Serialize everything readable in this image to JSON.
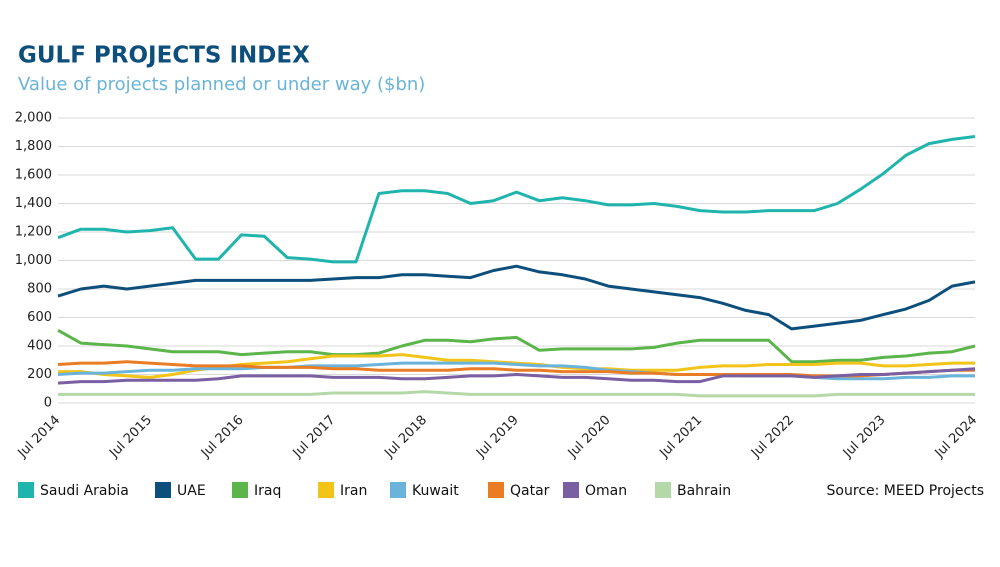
{
  "chart_data": {
    "type": "line",
    "title": "GULF PROJECTS INDEX",
    "subtitle": "Value of projects planned or under way ($bn)",
    "source": "Source: MEED Projects",
    "categories": [
      "Jul 2014",
      null,
      null,
      null,
      "Jul 2015",
      null,
      null,
      null,
      "Jul 2016",
      null,
      null,
      null,
      "Jul 2017",
      null,
      null,
      null,
      "Jul 2018",
      null,
      null,
      null,
      "Jul 2019",
      null,
      null,
      null,
      "Jul 2020",
      null,
      null,
      null,
      "Jul 2021",
      null,
      null,
      null,
      "Jul 2022",
      null,
      null,
      null,
      "Jul 2023",
      null,
      null,
      null,
      "Jul 2024"
    ],
    "ylim": [
      0,
      2000
    ],
    "yticks": [
      0,
      200,
      400,
      600,
      800,
      {
        "value": 1000,
        "label": "1,000"
      },
      {
        "value": 1200,
        "label": "1,200"
      },
      {
        "value": 1400,
        "label": "1,400"
      },
      {
        "value": 1600,
        "label": "1,600"
      },
      {
        "value": 1800,
        "label": "1,800"
      },
      {
        "value": 2000,
        "label": "2,000"
      }
    ],
    "grid": true,
    "legend": "bottom",
    "series": [
      {
        "name": "Saudi Arabia",
        "color": "#1fb5ad",
        "values": [
          1160,
          1220,
          1220,
          1200,
          1210,
          1230,
          1010,
          1010,
          1180,
          1170,
          1020,
          1010,
          990,
          990,
          1470,
          1490,
          1490,
          1470,
          1400,
          1420,
          1480,
          1420,
          1440,
          1420,
          1390,
          1390,
          1400,
          1380,
          1350,
          1340,
          1340,
          1350,
          1350,
          1350,
          1400,
          1500,
          1610,
          1740,
          1820,
          1850,
          1870
        ]
      },
      {
        "name": "UAE",
        "color": "#0d4f7c",
        "values": [
          750,
          800,
          820,
          800,
          820,
          840,
          860,
          860,
          860,
          860,
          860,
          860,
          870,
          880,
          880,
          900,
          900,
          890,
          880,
          930,
          960,
          920,
          900,
          870,
          820,
          800,
          780,
          760,
          740,
          700,
          650,
          620,
          520,
          540,
          560,
          580,
          620,
          660,
          720,
          820,
          850
        ]
      },
      {
        "name": "Iraq",
        "color": "#5cb54a",
        "values": [
          510,
          420,
          410,
          400,
          380,
          360,
          360,
          360,
          340,
          350,
          360,
          360,
          340,
          340,
          350,
          400,
          440,
          440,
          430,
          450,
          460,
          370,
          380,
          380,
          380,
          380,
          390,
          420,
          440,
          440,
          440,
          440,
          290,
          290,
          300,
          300,
          320,
          330,
          350,
          360,
          400
        ]
      },
      {
        "name": "Iran",
        "color": "#f2c418",
        "values": [
          220,
          220,
          200,
          190,
          180,
          200,
          230,
          250,
          270,
          280,
          290,
          310,
          330,
          330,
          330,
          340,
          320,
          300,
          300,
          290,
          280,
          270,
          250,
          240,
          240,
          230,
          230,
          230,
          250,
          260,
          260,
          270,
          270,
          270,
          280,
          280,
          260,
          260,
          270,
          280,
          280
        ]
      },
      {
        "name": "Kuwait",
        "color": "#6ab4db",
        "values": [
          200,
          210,
          210,
          220,
          230,
          230,
          240,
          240,
          240,
          250,
          250,
          260,
          260,
          260,
          270,
          280,
          280,
          280,
          280,
          280,
          270,
          260,
          260,
          250,
          230,
          220,
          210,
          200,
          200,
          200,
          190,
          190,
          190,
          180,
          170,
          170,
          170,
          180,
          180,
          190,
          190
        ]
      },
      {
        "name": "Qatar",
        "color": "#ea7d24",
        "values": [
          270,
          280,
          280,
          290,
          280,
          270,
          260,
          260,
          260,
          250,
          250,
          250,
          240,
          240,
          230,
          230,
          230,
          230,
          240,
          240,
          230,
          230,
          220,
          220,
          220,
          210,
          210,
          200,
          200,
          200,
          200,
          200,
          200,
          190,
          190,
          190,
          200,
          210,
          220,
          230,
          230
        ]
      },
      {
        "name": "Oman",
        "color": "#7a5fa3",
        "values": [
          140,
          150,
          150,
          160,
          160,
          160,
          160,
          170,
          190,
          190,
          190,
          190,
          180,
          180,
          180,
          170,
          170,
          180,
          190,
          190,
          200,
          190,
          180,
          180,
          170,
          160,
          160,
          150,
          150,
          190,
          190,
          190,
          190,
          180,
          190,
          200,
          200,
          210,
          220,
          230,
          240
        ]
      },
      {
        "name": "Bahrain",
        "color": "#b5d8a8",
        "values": [
          60,
          60,
          60,
          60,
          60,
          60,
          60,
          60,
          60,
          60,
          60,
          60,
          70,
          70,
          70,
          70,
          80,
          70,
          60,
          60,
          60,
          60,
          60,
          60,
          60,
          60,
          60,
          60,
          50,
          50,
          50,
          50,
          50,
          50,
          60,
          60,
          60,
          60,
          60,
          60,
          60
        ]
      }
    ]
  }
}
